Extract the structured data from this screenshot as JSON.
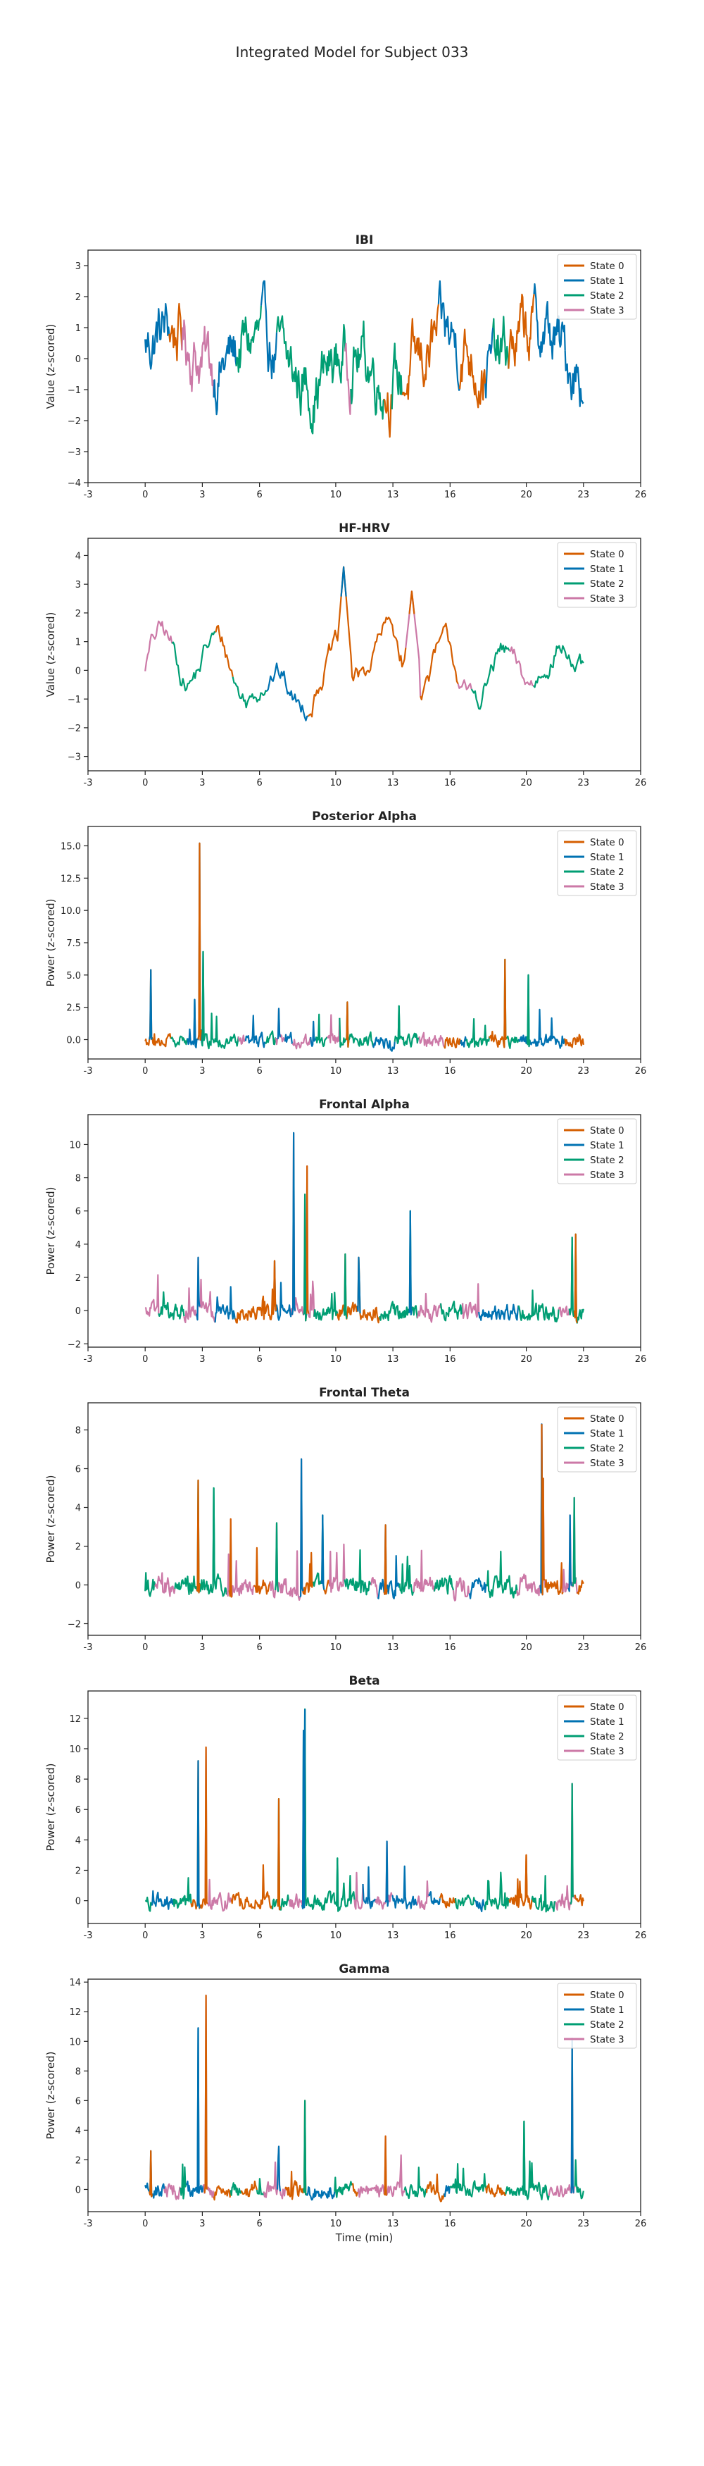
{
  "figure": {
    "title": "Integrated Model for Subject 033",
    "xlabel": "Time (min)"
  },
  "colors": {
    "State 0": "#D55E00",
    "State 1": "#0072B2",
    "State 2": "#009E73",
    "State 3": "#CC79A7"
  },
  "chart_data": [
    {
      "type": "line",
      "title": "IBI",
      "xlabel": "",
      "ylabel": "Value (z-scored)",
      "xlim": [
        -3,
        26
      ],
      "ylim": [
        -4,
        3.5
      ],
      "xticks": [
        -3,
        0,
        3,
        6,
        10,
        13,
        16,
        20,
        23,
        26
      ],
      "yticks": [
        -4,
        -3,
        -2,
        -1,
        0,
        1,
        2,
        3
      ],
      "ytick_labels": [
        "−4",
        "−3",
        "−2",
        "−1",
        "0",
        "1",
        "2",
        "3"
      ],
      "legend": [
        "State 0",
        "State 1",
        "State 2",
        "State 3"
      ],
      "legend_position": "top-right",
      "x_range": [
        0,
        23
      ],
      "profile": "ibi"
    },
    {
      "type": "line",
      "title": "HF-HRV",
      "xlabel": "",
      "ylabel": "Value (z-scored)",
      "xlim": [
        -3,
        26
      ],
      "ylim": [
        -3.5,
        4.6
      ],
      "xticks": [
        -3,
        0,
        3,
        6,
        10,
        13,
        16,
        20,
        23,
        26
      ],
      "yticks": [
        -3,
        -2,
        -1,
        0,
        1,
        2,
        3,
        4
      ],
      "ytick_labels": [
        "−3",
        "−2",
        "−1",
        "0",
        "1",
        "2",
        "3",
        "4"
      ],
      "legend": [
        "State 0",
        "State 1",
        "State 2",
        "State 3"
      ],
      "legend_position": "top-right",
      "x_range": [
        0,
        23
      ],
      "profile": "hrv",
      "peaks": [
        {
          "x": 10.4,
          "y": 3.6
        },
        {
          "x": 14.0,
          "y": 2.75
        }
      ]
    },
    {
      "type": "line",
      "title": "Posterior Alpha",
      "xlabel": "",
      "ylabel": "Power (z-scored)",
      "xlim": [
        -3,
        26
      ],
      "ylim": [
        -1.5,
        16.5
      ],
      "xticks": [
        -3,
        0,
        3,
        6,
        10,
        13,
        16,
        20,
        23,
        26
      ],
      "yticks": [
        0,
        2.5,
        5,
        7.5,
        10,
        12.5,
        15
      ],
      "ytick_labels": [
        "0.0",
        "2.5",
        "5.0",
        "7.5",
        "10.0",
        "12.5",
        "15.0"
      ],
      "legend": [
        "State 0",
        "State 1",
        "State 2",
        "State 3"
      ],
      "legend_position": "top-right",
      "x_range": [
        0,
        23
      ],
      "profile": "spiky",
      "peaks": [
        {
          "x": 0.3,
          "y": 5.4
        },
        {
          "x": 2.85,
          "y": 15.2
        },
        {
          "x": 3.05,
          "y": 6.8
        },
        {
          "x": 2.6,
          "y": 3.1
        },
        {
          "x": 18.9,
          "y": 6.2
        },
        {
          "x": 20.1,
          "y": 5.0
        },
        {
          "x": 7.0,
          "y": 2.4
        },
        {
          "x": 10.6,
          "y": 2.9
        },
        {
          "x": 13.3,
          "y": 2.6
        }
      ]
    },
    {
      "type": "line",
      "title": "Frontal Alpha",
      "xlabel": "",
      "ylabel": "Power (z-scored)",
      "xlim": [
        -3,
        26
      ],
      "ylim": [
        -2.2,
        11.8
      ],
      "xticks": [
        -3,
        0,
        3,
        6,
        10,
        13,
        16,
        20,
        23,
        26
      ],
      "yticks": [
        -2,
        0,
        2,
        4,
        6,
        8,
        10
      ],
      "ytick_labels": [
        "−2",
        "0",
        "2",
        "4",
        "6",
        "8",
        "10"
      ],
      "legend": [
        "State 0",
        "State 1",
        "State 2",
        "State 3"
      ],
      "legend_position": "top-right",
      "x_range": [
        0,
        23
      ],
      "profile": "spiky",
      "peaks": [
        {
          "x": 7.8,
          "y": 10.7
        },
        {
          "x": 8.5,
          "y": 8.7
        },
        {
          "x": 8.4,
          "y": 7.0
        },
        {
          "x": 13.9,
          "y": 6.0
        },
        {
          "x": 22.6,
          "y": 4.6
        },
        {
          "x": 22.4,
          "y": 4.4
        },
        {
          "x": 2.8,
          "y": 3.2
        },
        {
          "x": 6.8,
          "y": 3.0
        },
        {
          "x": 10.5,
          "y": 3.4
        },
        {
          "x": 11.2,
          "y": 3.2
        }
      ]
    },
    {
      "type": "line",
      "title": "Frontal Theta",
      "xlabel": "",
      "ylabel": "Power (z-scored)",
      "xlim": [
        -3,
        26
      ],
      "ylim": [
        -2.6,
        9.4
      ],
      "xticks": [
        -3,
        0,
        3,
        6,
        10,
        13,
        16,
        20,
        23,
        26
      ],
      "yticks": [
        -2,
        0,
        2,
        4,
        6,
        8
      ],
      "ytick_labels": [
        "−2",
        "0",
        "2",
        "4",
        "6",
        "8"
      ],
      "legend": [
        "State 0",
        "State 1",
        "State 2",
        "State 3"
      ],
      "legend_position": "top-right",
      "x_range": [
        0,
        23
      ],
      "profile": "spiky",
      "peaks": [
        {
          "x": 8.2,
          "y": 6.5
        },
        {
          "x": 2.8,
          "y": 5.4
        },
        {
          "x": 3.6,
          "y": 5.0
        },
        {
          "x": 20.8,
          "y": 8.3
        },
        {
          "x": 20.9,
          "y": 5.5
        },
        {
          "x": 22.5,
          "y": 4.5
        },
        {
          "x": 22.3,
          "y": 3.6
        },
        {
          "x": 4.5,
          "y": 3.4
        },
        {
          "x": 6.9,
          "y": 3.2
        },
        {
          "x": 9.3,
          "y": 3.6
        },
        {
          "x": 12.6,
          "y": 3.1
        }
      ]
    },
    {
      "type": "line",
      "title": "Beta",
      "xlabel": "",
      "ylabel": "Power (z-scored)",
      "xlim": [
        -3,
        26
      ],
      "ylim": [
        -1.5,
        13.8
      ],
      "xticks": [
        -3,
        0,
        3,
        6,
        10,
        13,
        16,
        20,
        23,
        26
      ],
      "yticks": [
        0,
        2,
        4,
        6,
        8,
        10,
        12
      ],
      "ytick_labels": [
        "0",
        "2",
        "4",
        "6",
        "8",
        "10",
        "12"
      ],
      "legend": [
        "State 0",
        "State 1",
        "State 2",
        "State 3"
      ],
      "legend_position": "top-right",
      "x_range": [
        0,
        23
      ],
      "profile": "spiky",
      "peaks": [
        {
          "x": 2.8,
          "y": 9.2
        },
        {
          "x": 3.2,
          "y": 10.1
        },
        {
          "x": 8.4,
          "y": 12.6
        },
        {
          "x": 8.3,
          "y": 11.2
        },
        {
          "x": 7.0,
          "y": 6.7
        },
        {
          "x": 22.4,
          "y": 7.7
        },
        {
          "x": 12.7,
          "y": 3.9
        },
        {
          "x": 20.0,
          "y": 3.0
        },
        {
          "x": 10.1,
          "y": 2.8
        }
      ]
    },
    {
      "type": "line",
      "title": "Gamma",
      "xlabel": "Time (min)",
      "ylabel": "Power (z-scored)",
      "xlim": [
        -3,
        26
      ],
      "ylim": [
        -1.5,
        14.2
      ],
      "xticks": [
        -3,
        0,
        3,
        6,
        10,
        13,
        16,
        20,
        23,
        26
      ],
      "yticks": [
        0,
        2,
        4,
        6,
        8,
        10,
        12,
        14
      ],
      "ytick_labels": [
        "0",
        "2",
        "4",
        "6",
        "8",
        "10",
        "12",
        "14"
      ],
      "legend": [
        "State 0",
        "State 1",
        "State 2",
        "State 3"
      ],
      "legend_position": "top-right",
      "x_range": [
        0,
        23
      ],
      "profile": "spiky",
      "peaks": [
        {
          "x": 2.8,
          "y": 10.9
        },
        {
          "x": 3.2,
          "y": 13.1
        },
        {
          "x": 8.4,
          "y": 6.0
        },
        {
          "x": 22.4,
          "y": 10.2
        },
        {
          "x": 12.6,
          "y": 3.6
        },
        {
          "x": 19.9,
          "y": 4.6
        },
        {
          "x": 7.0,
          "y": 2.9
        },
        {
          "x": 0.3,
          "y": 2.6
        }
      ]
    }
  ]
}
